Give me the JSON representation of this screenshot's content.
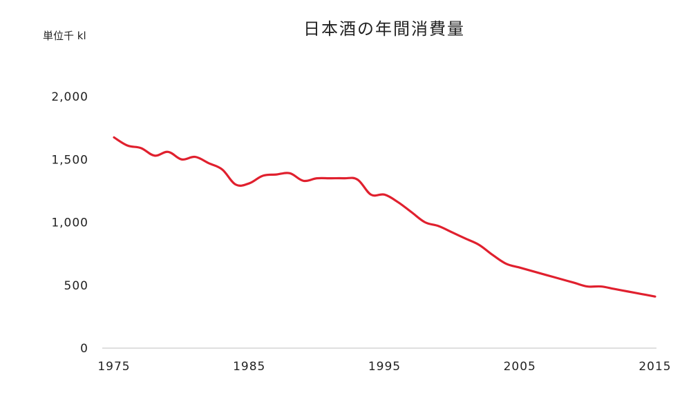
{
  "chart_data": {
    "type": "line",
    "title": "日本酒の年間消費量",
    "ylabel": "単位千 kl",
    "xlabel": "",
    "xlim": [
      1975,
      2015
    ],
    "ylim": [
      0,
      2000
    ],
    "x_ticks": [
      1975,
      1985,
      1995,
      2005,
      2015
    ],
    "x_tick_labels": [
      "1975",
      "1985",
      "1995",
      "2005",
      "2015"
    ],
    "y_ticks": [
      0,
      500,
      1000,
      1500,
      2000
    ],
    "y_tick_labels": [
      "0",
      "500",
      "1,000",
      "1,500",
      "2,000"
    ],
    "grid": false,
    "line_color": "#e0202e",
    "series": [
      {
        "x": [
          1975,
          1976,
          1977,
          1978,
          1979,
          1980,
          1981,
          1982,
          1983,
          1984,
          1985,
          1986,
          1987,
          1988,
          1989,
          1990,
          1991,
          1992,
          1993,
          1994,
          1995,
          1996,
          1997,
          1998,
          1999,
          2000,
          2001,
          2002,
          2003,
          2004,
          2005,
          2006,
          2007,
          2008,
          2009,
          2010,
          2011,
          2012,
          2013,
          2014,
          2015
        ],
        "y": [
          1675,
          1610,
          1590,
          1530,
          1560,
          1500,
          1520,
          1470,
          1420,
          1300,
          1310,
          1370,
          1380,
          1390,
          1330,
          1350,
          1350,
          1350,
          1340,
          1220,
          1220,
          1160,
          1080,
          1000,
          970,
          920,
          870,
          820,
          740,
          670,
          640,
          610,
          580,
          550,
          520,
          490,
          490,
          470,
          450,
          430,
          410
        ]
      }
    ]
  }
}
